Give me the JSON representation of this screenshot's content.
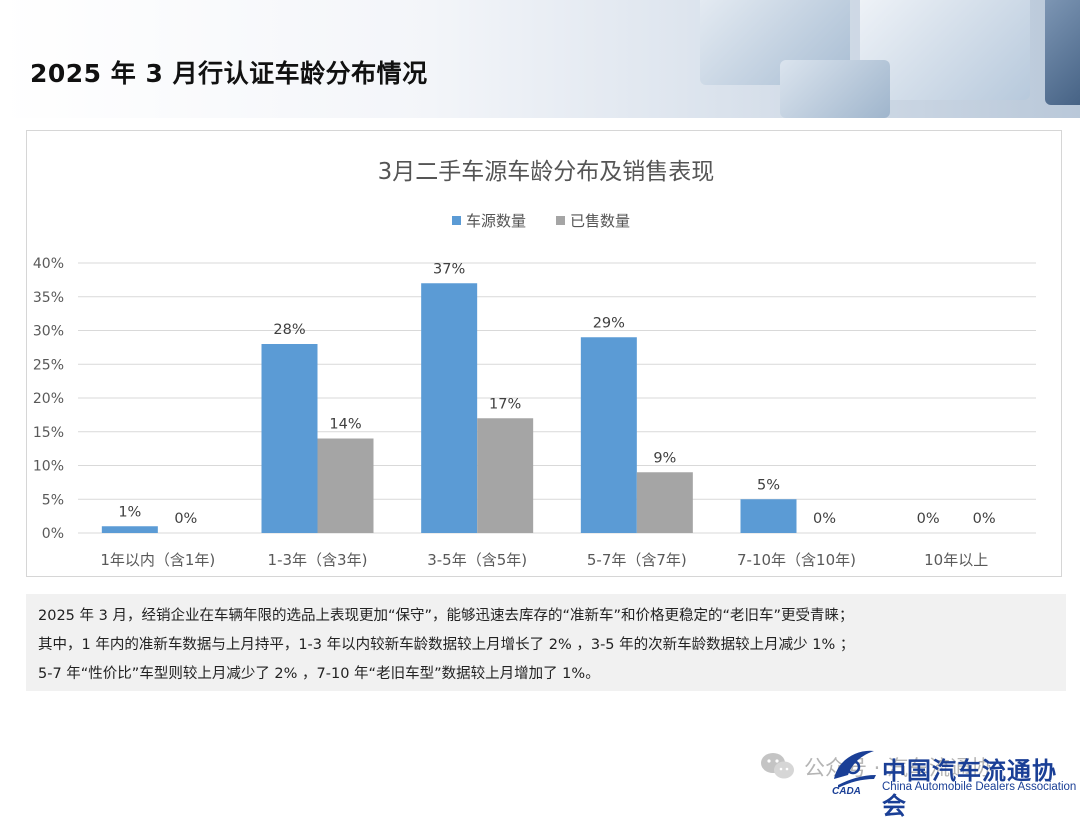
{
  "page": {
    "title": "2025 年 3 月行认证车龄分布情况"
  },
  "chart_data": {
    "type": "bar",
    "title": "3月二手车源车龄分布及销售表现",
    "categories": [
      "1年以内（含1年)",
      "1-3年（含3年)",
      "3-5年（含5年)",
      "5-7年（含7年)",
      "7-10年（含10年)",
      "10年以上"
    ],
    "series": [
      {
        "name": "车源数量",
        "values": [
          1,
          28,
          37,
          29,
          5,
          0
        ],
        "labels": [
          "1%",
          "28%",
          "37%",
          "29%",
          "5%",
          "0%"
        ],
        "color": "#5b9bd5"
      },
      {
        "name": "已售数量",
        "values": [
          0,
          14,
          17,
          9,
          0,
          0
        ],
        "labels": [
          "0%",
          "14%",
          "17%",
          "9%",
          "0%",
          "0%"
        ],
        "color": "#a5a5a5"
      }
    ],
    "ylim": [
      0,
      40
    ],
    "yticks": [
      "0%",
      "5%",
      "10%",
      "15%",
      "20%",
      "25%",
      "30%",
      "35%",
      "40%"
    ],
    "grid": true,
    "legend_position": "top-center"
  },
  "description": {
    "lines": [
      "2025 年 3 月，经销企业在车辆年限的选品上表现更加“保守”，能够迅速去库存的“准新车”和价格更稳定的“老旧车”更受青睐；",
      "其中，1 年内的准新车数据与上月持平，1-3 年以内较新车龄数据较上月增长了 2% ，3-5 年的次新车龄数据较上月减少 1% ；",
      "5-7 年“性价比”车型则较上月减少了 2% ，7-10 年“老旧车型”数据较上月增加了 1%。"
    ]
  },
  "footer": {
    "watermark": "公众号 · 汽车流通协",
    "org_name_cn": "中国汽车流通协会",
    "org_name_en": "China Automobile Dealers Association",
    "org_abbr": "CADA",
    "brand_color": "#1a3f96"
  }
}
